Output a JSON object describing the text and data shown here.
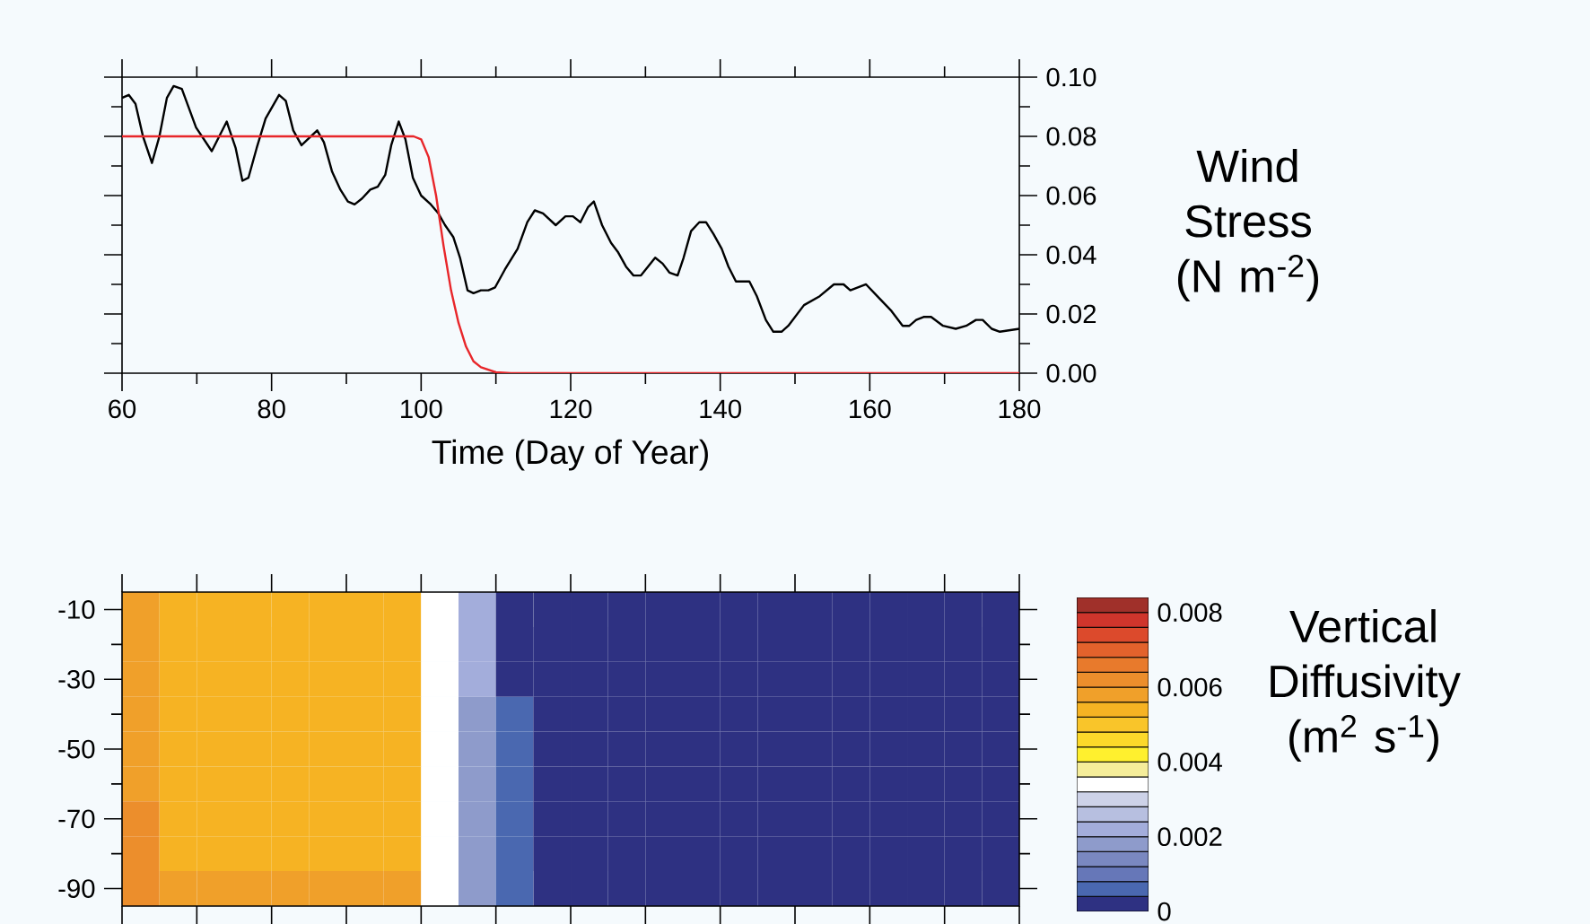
{
  "chart_data": [
    {
      "type": "line",
      "ylabel": "Wind Stress (N m$^{-2}$)",
      "xlabel": "Time (Day of Year)",
      "xlim": [
        60,
        180
      ],
      "xticks": [
        60,
        80,
        100,
        120,
        140,
        160,
        180
      ],
      "ylim": [
        0,
        0.1
      ],
      "yticks": [
        {
          "value": 0,
          "label": "0.00"
        },
        0.02,
        0.04,
        0.06,
        0.08,
        {
          "value": 0.1,
          "label": "0.10"
        }
      ],
      "marker": "none",
      "line_style": "solid",
      "series": [
        {
          "color": "#000000",
          "x": [
            60,
            60.9,
            61.8,
            62.8,
            64,
            65,
            66,
            66.9,
            68,
            69.9,
            72,
            74,
            75.2,
            76.1,
            76.9,
            78,
            79.2,
            81,
            81.9,
            82.9,
            84,
            86.1,
            87,
            88.1,
            89.2,
            90.2,
            91.1,
            92.1,
            93.2,
            94.2,
            95.2,
            96,
            97,
            97.9,
            98.9,
            100,
            101.3,
            102.3,
            103.2,
            104.3,
            105.2,
            106.2,
            107,
            108,
            109,
            109.9,
            111.2,
            112.9,
            114.2,
            115.2,
            116.3,
            118,
            119.3,
            120.3,
            121.3,
            122.3,
            123.1,
            124.2,
            125.4,
            126.3,
            127.4,
            128.4,
            129.4,
            131.3,
            132.3,
            133.2,
            134.3,
            135.1,
            136.1,
            137.2,
            138.1,
            139.1,
            140.2,
            141.1,
            142.1,
            143.9,
            144.9,
            146.1,
            147.1,
            148.2,
            149.1,
            151.2,
            153.3,
            155.2,
            156.5,
            157.4,
            159.5,
            161,
            162.9,
            164.4,
            165.3,
            166.2,
            167.2,
            168.2,
            169.8,
            171.5,
            172.9,
            174.2,
            175.1,
            176.3,
            177.4,
            180
          ],
          "values": [
            0.093,
            0.094,
            0.091,
            0.08,
            0.071,
            0.08,
            0.093,
            0.097,
            0.096,
            0.083,
            0.075,
            0.085,
            0.076,
            0.065,
            0.066,
            0.076,
            0.086,
            0.094,
            0.092,
            0.082,
            0.077,
            0.082,
            0.078,
            0.068,
            0.062,
            0.058,
            0.057,
            0.059,
            0.062,
            0.063,
            0.067,
            0.077,
            0.085,
            0.079,
            0.066,
            0.06,
            0.057,
            0.054,
            0.05,
            0.046,
            0.039,
            0.028,
            0.027,
            0.028,
            0.028,
            0.029,
            0.035,
            0.042,
            0.051,
            0.055,
            0.054,
            0.05,
            0.053,
            0.053,
            0.051,
            0.056,
            0.058,
            0.05,
            0.044,
            0.041,
            0.036,
            0.033,
            0.033,
            0.039,
            0.037,
            0.034,
            0.033,
            0.039,
            0.048,
            0.051,
            0.051,
            0.047,
            0.042,
            0.036,
            0.031,
            0.031,
            0.026,
            0.018,
            0.014,
            0.014,
            0.016,
            0.023,
            0.026,
            0.03,
            0.03,
            0.028,
            0.03,
            0.026,
            0.021,
            0.016,
            0.016,
            0.018,
            0.019,
            0.019,
            0.016,
            0.015,
            0.016,
            0.018,
            0.018,
            0.015,
            0.014,
            0.015
          ]
        },
        {
          "color": "#e8262a",
          "x": [
            60,
            99,
            100,
            101,
            102,
            103,
            104,
            105,
            106,
            107,
            108,
            110,
            112,
            180
          ],
          "values": [
            0.08,
            0.08,
            0.079,
            0.073,
            0.06,
            0.043,
            0.028,
            0.017,
            0.009,
            0.004,
            0.002,
            0.0003,
            0,
            0
          ]
        }
      ]
    },
    {
      "type": "heatmap",
      "clabel": "Vertical Diffusivity (m$^{2}$ s$^{-1}$)",
      "categories": [
        null,
        null,
        null,
        null,
        null,
        null,
        null,
        null,
        null,
        null,
        null,
        null,
        null,
        null,
        null,
        null,
        null,
        null,
        null,
        null,
        null,
        null,
        null,
        null
      ],
      "y_categories": [
        "-10",
        null,
        "-30",
        null,
        "-50",
        null,
        "-70",
        null,
        "-90"
      ],
      "tick_labels": "y",
      "clim": [
        0,
        0.0084
      ],
      "cticks": [
        0,
        0.002,
        0.004,
        0.006,
        0.008
      ],
      "cells": [
        [
          0.0058,
          0.0054,
          0.0054,
          0.0054,
          0.0054,
          0.0054,
          0.0054,
          0.0054,
          0.0034,
          0.0022,
          0,
          0,
          0,
          0,
          0,
          0,
          0,
          0,
          0,
          0,
          0,
          0,
          0,
          0
        ],
        [
          0.0058,
          0.0054,
          0.0054,
          0.0054,
          0.0054,
          0.0054,
          0.0054,
          0.0054,
          0.0034,
          0.0022,
          0,
          0,
          0,
          0,
          0,
          0,
          0,
          0,
          0,
          0,
          0,
          0,
          0,
          0
        ],
        [
          0.0058,
          0.0054,
          0.0054,
          0.0054,
          0.0054,
          0.0054,
          0.0054,
          0.0054,
          0.0034,
          0.0022,
          0,
          0,
          0,
          0,
          0,
          0,
          0,
          0,
          0,
          0,
          0,
          0,
          0,
          0
        ],
        [
          0.0058,
          0.0054,
          0.0054,
          0.0054,
          0.0054,
          0.0054,
          0.0054,
          0.0054,
          0.0034,
          0.0018,
          0.0006,
          0,
          0,
          0,
          0,
          0,
          0,
          0,
          0,
          0,
          0,
          0,
          0,
          0
        ],
        [
          0.0058,
          0.0054,
          0.0054,
          0.0054,
          0.0054,
          0.0054,
          0.0054,
          0.0054,
          0.0034,
          0.0018,
          0.0006,
          0,
          0,
          0,
          0,
          0,
          0,
          0,
          0,
          0,
          0,
          0,
          0,
          0
        ],
        [
          0.0058,
          0.0054,
          0.0054,
          0.0054,
          0.0054,
          0.0054,
          0.0054,
          0.0054,
          0.0034,
          0.0018,
          0.0006,
          0,
          0,
          0,
          0,
          0,
          0,
          0,
          0,
          0,
          0,
          0,
          0,
          0
        ],
        [
          0.0062,
          0.0054,
          0.0054,
          0.0054,
          0.0054,
          0.0054,
          0.0054,
          0.0054,
          0.0034,
          0.0018,
          0.0006,
          0,
          0,
          0,
          0,
          0,
          0,
          0,
          0,
          0,
          0,
          0,
          0,
          0
        ],
        [
          0.0062,
          0.0054,
          0.0054,
          0.0054,
          0.0054,
          0.0054,
          0.0054,
          0.0054,
          0.0034,
          0.0018,
          0.0006,
          0,
          0,
          0,
          0,
          0,
          0,
          0,
          0,
          0,
          0,
          0,
          0,
          0
        ],
        [
          0.0062,
          0.0058,
          0.0058,
          0.0058,
          0.0058,
          0.0058,
          0.0058,
          0.0058,
          0.0034,
          0.0018,
          0.0006,
          0,
          0,
          0,
          0,
          0,
          0,
          0,
          0,
          0,
          0,
          0,
          0,
          0
        ]
      ]
    }
  ]
}
